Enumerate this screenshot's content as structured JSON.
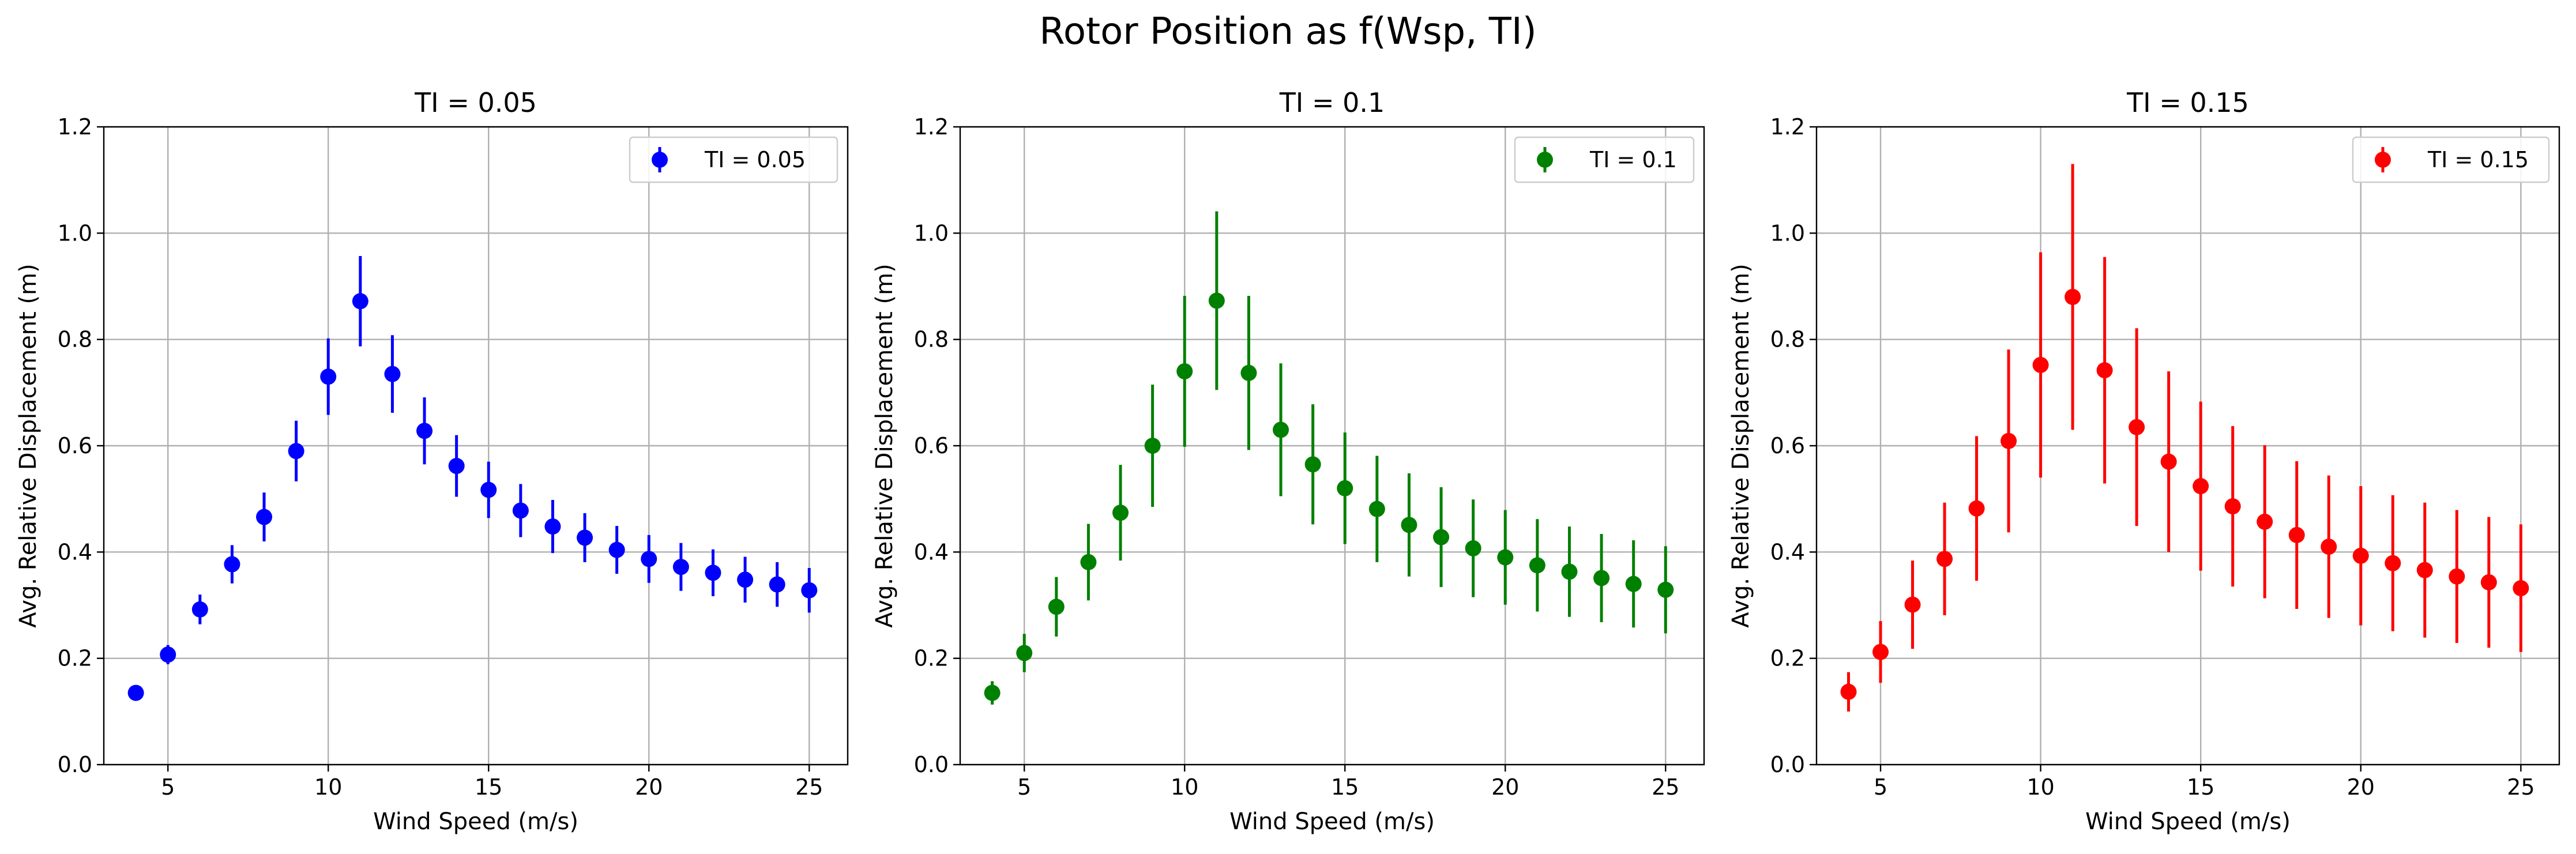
{
  "figure": {
    "suptitle": "Rotor Position as f(Wsp, TI)"
  },
  "chart_data": [
    {
      "type": "scatter",
      "title": "TI = 0.05",
      "xlabel": "Wind Speed (m/s)",
      "ylabel": "Avg. Relative Displacement (m)",
      "xlim": [
        3,
        26.2
      ],
      "ylim": [
        0,
        1.2
      ],
      "xticks": [
        5,
        10,
        15,
        20,
        25
      ],
      "yticks": [
        0.0,
        0.2,
        0.4,
        0.6,
        0.8,
        1.0,
        1.2
      ],
      "grid": true,
      "legend_position": "top-right",
      "error_bars": true,
      "series": [
        {
          "name": "TI = 0.05",
          "color": "#0000ff",
          "x": [
            4,
            5,
            6,
            7,
            8,
            9,
            10,
            11,
            12,
            13,
            14,
            15,
            16,
            17,
            18,
            19,
            20,
            21,
            22,
            23,
            24,
            25
          ],
          "y": [
            0.135,
            0.207,
            0.292,
            0.377,
            0.466,
            0.59,
            0.73,
            0.872,
            0.735,
            0.628,
            0.562,
            0.517,
            0.478,
            0.448,
            0.427,
            0.404,
            0.387,
            0.372,
            0.361,
            0.348,
            0.339,
            0.328
          ],
          "yerr": [
            0.006,
            0.018,
            0.028,
            0.036,
            0.046,
            0.057,
            0.072,
            0.085,
            0.073,
            0.063,
            0.058,
            0.053,
            0.05,
            0.05,
            0.046,
            0.045,
            0.045,
            0.045,
            0.044,
            0.043,
            0.042,
            0.042
          ]
        }
      ]
    },
    {
      "type": "scatter",
      "title": "TI = 0.1",
      "xlabel": "Wind Speed (m/s)",
      "ylabel": "Avg. Relative Displacement (m)",
      "xlim": [
        3,
        26.2
      ],
      "ylim": [
        0,
        1.2
      ],
      "xticks": [
        5,
        10,
        15,
        20,
        25
      ],
      "yticks": [
        0.0,
        0.2,
        0.4,
        0.6,
        0.8,
        1.0,
        1.2
      ],
      "grid": true,
      "legend_position": "top-right",
      "error_bars": true,
      "series": [
        {
          "name": "TI = 0.1",
          "color": "#008000",
          "x": [
            4,
            5,
            6,
            7,
            8,
            9,
            10,
            11,
            12,
            13,
            14,
            15,
            16,
            17,
            18,
            19,
            20,
            21,
            22,
            23,
            24,
            25
          ],
          "y": [
            0.135,
            0.21,
            0.297,
            0.381,
            0.474,
            0.6,
            0.74,
            0.873,
            0.737,
            0.63,
            0.565,
            0.52,
            0.481,
            0.451,
            0.428,
            0.407,
            0.39,
            0.375,
            0.363,
            0.351,
            0.34,
            0.329
          ],
          "yerr": [
            0.022,
            0.036,
            0.056,
            0.072,
            0.09,
            0.115,
            0.142,
            0.168,
            0.145,
            0.125,
            0.113,
            0.105,
            0.1,
            0.097,
            0.094,
            0.092,
            0.089,
            0.087,
            0.085,
            0.083,
            0.082,
            0.082
          ]
        }
      ]
    },
    {
      "type": "scatter",
      "title": "TI = 0.15",
      "xlabel": "Wind Speed (m/s)",
      "ylabel": "Avg. Relative Displacement (m)",
      "xlim": [
        3,
        26.2
      ],
      "ylim": [
        0,
        1.2
      ],
      "xticks": [
        5,
        10,
        15,
        20,
        25
      ],
      "yticks": [
        0.0,
        0.2,
        0.4,
        0.6,
        0.8,
        1.0,
        1.2
      ],
      "grid": true,
      "legend_position": "top-right",
      "error_bars": true,
      "series": [
        {
          "name": "TI = 0.15",
          "color": "#ff0000",
          "x": [
            4,
            5,
            6,
            7,
            8,
            9,
            10,
            11,
            12,
            13,
            14,
            15,
            16,
            17,
            18,
            19,
            20,
            21,
            22,
            23,
            24,
            25
          ],
          "y": [
            0.137,
            0.212,
            0.301,
            0.387,
            0.482,
            0.609,
            0.752,
            0.88,
            0.742,
            0.635,
            0.57,
            0.524,
            0.486,
            0.457,
            0.432,
            0.41,
            0.393,
            0.379,
            0.366,
            0.354,
            0.343,
            0.332
          ],
          "yerr": [
            0.037,
            0.058,
            0.083,
            0.106,
            0.136,
            0.172,
            0.212,
            0.25,
            0.213,
            0.186,
            0.17,
            0.159,
            0.151,
            0.144,
            0.139,
            0.134,
            0.131,
            0.128,
            0.127,
            0.125,
            0.123,
            0.12
          ]
        }
      ]
    }
  ]
}
